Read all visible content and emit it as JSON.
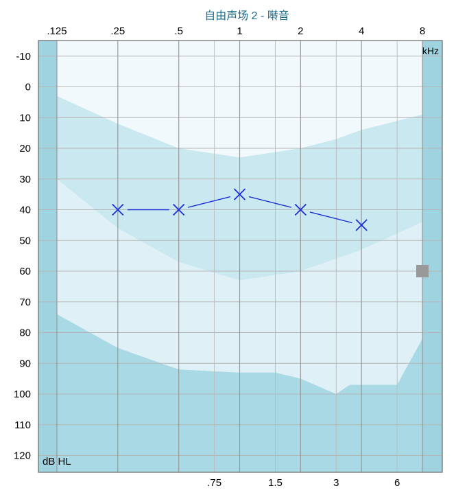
{
  "chart_data": {
    "type": "line",
    "title": "自由声场 2 - 啭音",
    "x_unit": "kHz",
    "y_unit": "dB HL",
    "x_top_ticks": [
      {
        "label": ".125",
        "f": 0.125
      },
      {
        "label": ".25",
        "f": 0.25
      },
      {
        "label": ".5",
        "f": 0.5
      },
      {
        "label": "1",
        "f": 1
      },
      {
        "label": "2",
        "f": 2
      },
      {
        "label": "4",
        "f": 4
      },
      {
        "label": "8",
        "f": 8
      }
    ],
    "x_bottom_ticks": [
      {
        "label": ".75",
        "f": 0.75
      },
      {
        "label": "1.5",
        "f": 1.5
      },
      {
        "label": "3",
        "f": 3
      },
      {
        "label": "6",
        "f": 6
      }
    ],
    "y_range": [
      -15,
      125
    ],
    "y_ticks": [
      -10,
      0,
      10,
      20,
      30,
      40,
      50,
      60,
      70,
      80,
      90,
      100,
      110,
      120
    ],
    "y_inverted": true,
    "series": [
      {
        "marker": "x",
        "color": "#1a2fd6",
        "points": [
          {
            "f": 0.25,
            "db": 40
          },
          {
            "f": 0.5,
            "db": 40
          },
          {
            "f": 1,
            "db": 35
          },
          {
            "f": 2,
            "db": 40
          },
          {
            "f": 4,
            "db": 45
          }
        ]
      }
    ],
    "extra_marker": {
      "shape": "square",
      "color": "#999999",
      "f": 8,
      "db": 60
    },
    "bands": {
      "colors": [
        "#f2f9fc",
        "#c9e8ef",
        "#dff1f6",
        "#a8d9e4"
      ],
      "boundaries": [
        [
          {
            "f": 0.125,
            "db": 3
          },
          {
            "f": 0.25,
            "db": 12
          },
          {
            "f": 0.5,
            "db": 20
          },
          {
            "f": 1,
            "db": 23
          },
          {
            "f": 2,
            "db": 20
          },
          {
            "f": 3,
            "db": 17
          },
          {
            "f": 4,
            "db": 14
          },
          {
            "f": 8,
            "db": 9
          }
        ],
        [
          {
            "f": 0.125,
            "db": 30
          },
          {
            "f": 0.25,
            "db": 46
          },
          {
            "f": 0.5,
            "db": 57
          },
          {
            "f": 1,
            "db": 63
          },
          {
            "f": 2,
            "db": 60
          },
          {
            "f": 4,
            "db": 53
          },
          {
            "f": 8,
            "db": 44
          }
        ],
        [
          {
            "f": 0.125,
            "db": 74
          },
          {
            "f": 0.25,
            "db": 85
          },
          {
            "f": 0.5,
            "db": 92
          },
          {
            "f": 1,
            "db": 93
          },
          {
            "f": 1.5,
            "db": 93
          },
          {
            "f": 2,
            "db": 95
          },
          {
            "f": 3,
            "db": 100
          },
          {
            "f": 3.5,
            "db": 97
          },
          {
            "f": 6,
            "db": 97
          },
          {
            "f": 8,
            "db": 82
          }
        ]
      ]
    }
  }
}
